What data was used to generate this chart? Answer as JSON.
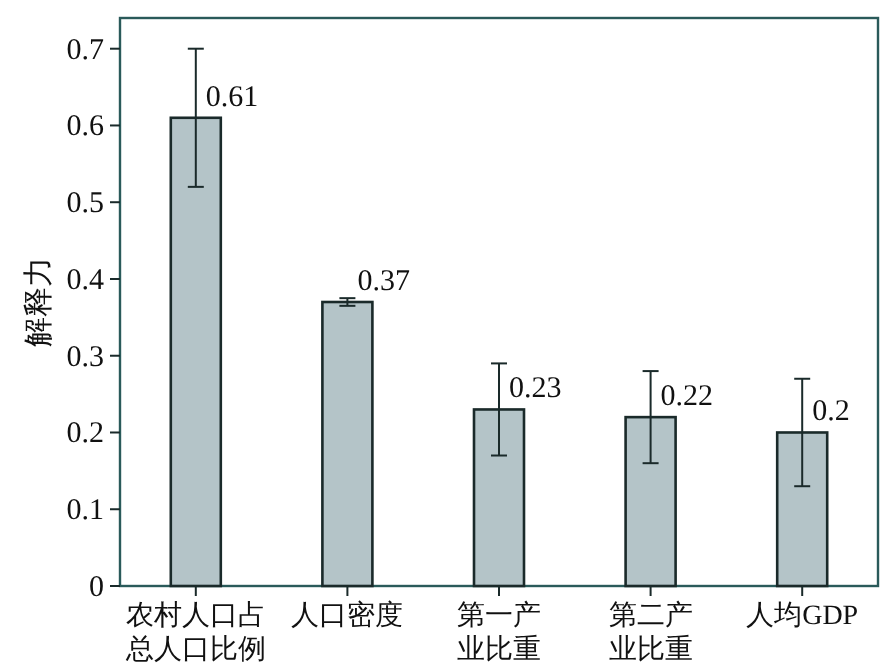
{
  "chart_data": {
    "type": "bar",
    "ylabel": "解释力",
    "categories": [
      "农村人口占总人口比例",
      "人口密度",
      "第一产业比重",
      "第二产业比重",
      "人均GDP"
    ],
    "values": [
      0.61,
      0.37,
      0.23,
      0.22,
      0.2
    ],
    "errors": [
      [
        0.52,
        0.7
      ],
      [
        0.365,
        0.375
      ],
      [
        0.17,
        0.29
      ],
      [
        0.16,
        0.28
      ],
      [
        0.13,
        0.27
      ]
    ],
    "color": "#b4c4c8",
    "data_labels": true,
    "ylim": [
      0,
      0.74
    ],
    "yticks": [
      0,
      0.1,
      0.2,
      0.3,
      0.4,
      0.5,
      0.6,
      0.7
    ],
    "grid": false
  }
}
